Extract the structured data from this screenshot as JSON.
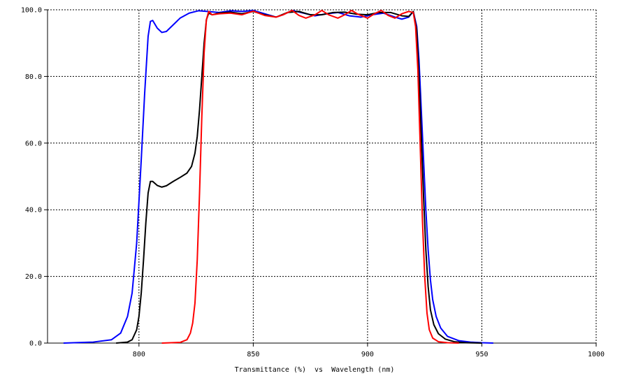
{
  "chart_data": {
    "type": "line",
    "title": "",
    "xlabel": "Transmittance (%)  vs  Wavelength (nm)",
    "ylabel": "",
    "xlim": [
      760,
      1000
    ],
    "ylim": [
      0,
      100
    ],
    "grid": true,
    "x_ticks": [
      800,
      850,
      900,
      950,
      1000
    ],
    "x_tick_labels": [
      "800",
      "850",
      "900",
      "950",
      "1000"
    ],
    "y_ticks": [
      0,
      20,
      40,
      60,
      80,
      100
    ],
    "y_tick_labels": [
      "0.0",
      "20.0",
      "40.0",
      "60.0",
      "80.0",
      "100.0"
    ],
    "series": [
      {
        "color": "#0000ff",
        "points": [
          [
            767,
            0
          ],
          [
            780,
            0.3
          ],
          [
            788,
            1
          ],
          [
            792,
            3
          ],
          [
            795,
            8
          ],
          [
            797,
            15
          ],
          [
            799,
            30
          ],
          [
            801,
            55
          ],
          [
            802.5,
            75
          ],
          [
            804,
            92
          ],
          [
            805,
            96.5
          ],
          [
            806,
            96.8
          ],
          [
            808,
            94.5
          ],
          [
            810,
            93.2
          ],
          [
            812,
            93.5
          ],
          [
            815,
            95.5
          ],
          [
            818,
            97.5
          ],
          [
            822,
            99
          ],
          [
            826,
            99.7
          ],
          [
            830,
            99.5
          ],
          [
            835,
            99.2
          ],
          [
            840,
            99.7
          ],
          [
            845,
            99.5
          ],
          [
            850,
            99.8
          ],
          [
            855,
            98.8
          ],
          [
            860,
            97.8
          ],
          [
            863,
            98.5
          ],
          [
            867,
            99.8
          ],
          [
            872,
            99
          ],
          [
            877,
            98.2
          ],
          [
            882,
            98.8
          ],
          [
            887,
            99.2
          ],
          [
            892,
            98.2
          ],
          [
            897,
            97.8
          ],
          [
            902,
            98.5
          ],
          [
            907,
            99
          ],
          [
            912,
            97.8
          ],
          [
            915,
            97.2
          ],
          [
            918,
            97.8
          ],
          [
            920,
            99.5
          ],
          [
            921.5,
            95
          ],
          [
            922.5,
            85
          ],
          [
            923.5,
            70
          ],
          [
            924.5,
            55
          ],
          [
            925.5,
            40
          ],
          [
            926.5,
            28
          ],
          [
            927.5,
            19
          ],
          [
            928.5,
            13
          ],
          [
            930,
            8
          ],
          [
            932,
            4.5
          ],
          [
            935,
            2
          ],
          [
            940,
            0.7
          ],
          [
            945,
            0.3
          ],
          [
            950,
            0.1
          ],
          [
            955,
            0
          ]
        ]
      },
      {
        "color": "#000000",
        "points": [
          [
            790,
            0
          ],
          [
            795,
            0.3
          ],
          [
            797,
            1
          ],
          [
            799,
            4
          ],
          [
            800,
            8
          ],
          [
            801,
            15
          ],
          [
            802,
            25
          ],
          [
            803,
            36
          ],
          [
            804,
            45
          ],
          [
            805,
            48.5
          ],
          [
            806,
            48.5
          ],
          [
            808,
            47.3
          ],
          [
            810,
            46.8
          ],
          [
            812,
            47.2
          ],
          [
            815,
            48.5
          ],
          [
            818,
            49.7
          ],
          [
            821,
            51
          ],
          [
            823,
            53
          ],
          [
            824.5,
            57
          ],
          [
            825.5,
            62
          ],
          [
            826.5,
            70
          ],
          [
            827.5,
            80
          ],
          [
            828.5,
            90
          ],
          [
            829.5,
            97
          ],
          [
            830.5,
            99
          ],
          [
            832,
            98.5
          ],
          [
            835,
            99
          ],
          [
            840,
            99.3
          ],
          [
            845,
            98.8
          ],
          [
            850,
            99.5
          ],
          [
            855,
            98.5
          ],
          [
            860,
            97.8
          ],
          [
            865,
            99.2
          ],
          [
            870,
            99.5
          ],
          [
            875,
            98.5
          ],
          [
            880,
            98.5
          ],
          [
            885,
            99.2
          ],
          [
            890,
            99.3
          ],
          [
            895,
            98.7
          ],
          [
            900,
            98.5
          ],
          [
            905,
            99.2
          ],
          [
            910,
            99.2
          ],
          [
            915,
            98.2
          ],
          [
            918,
            98
          ],
          [
            920,
            99.5
          ],
          [
            921.5,
            94
          ],
          [
            922.5,
            80
          ],
          [
            923.5,
            62
          ],
          [
            924.5,
            44
          ],
          [
            925.5,
            28
          ],
          [
            926.5,
            17
          ],
          [
            927.5,
            10
          ],
          [
            929,
            5.5
          ],
          [
            931,
            2.8
          ],
          [
            934,
            1.2
          ],
          [
            938,
            0.4
          ],
          [
            943,
            0.1
          ],
          [
            950,
            0
          ]
        ]
      },
      {
        "color": "#ff0000",
        "points": [
          [
            810,
            0
          ],
          [
            818,
            0.2
          ],
          [
            821,
            1
          ],
          [
            822.5,
            3
          ],
          [
            823.5,
            6
          ],
          [
            824.5,
            12
          ],
          [
            825.5,
            25
          ],
          [
            826.5,
            45
          ],
          [
            827.5,
            68
          ],
          [
            828.5,
            87
          ],
          [
            829.5,
            97
          ],
          [
            830.5,
            99.5
          ],
          [
            832,
            98.5
          ],
          [
            835,
            98.8
          ],
          [
            840,
            99
          ],
          [
            845,
            98.5
          ],
          [
            850,
            99.6
          ],
          [
            855,
            98.3
          ],
          [
            860,
            97.8
          ],
          [
            863,
            98.5
          ],
          [
            867,
            99.8
          ],
          [
            870,
            98.3
          ],
          [
            873,
            97.5
          ],
          [
            877,
            98.5
          ],
          [
            880,
            99.8
          ],
          [
            883,
            98.5
          ],
          [
            887,
            97.5
          ],
          [
            890,
            98.5
          ],
          [
            893,
            99.8
          ],
          [
            896,
            98.6
          ],
          [
            900,
            97.5
          ],
          [
            903,
            98.8
          ],
          [
            906,
            99.8
          ],
          [
            909,
            98.3
          ],
          [
            912,
            97.5
          ],
          [
            915,
            98.8
          ],
          [
            918,
            99.5
          ],
          [
            920,
            99.2
          ],
          [
            921,
            95
          ],
          [
            922,
            82
          ],
          [
            923,
            60
          ],
          [
            924,
            37
          ],
          [
            925,
            20
          ],
          [
            926,
            9
          ],
          [
            927,
            4
          ],
          [
            928.5,
            1.5
          ],
          [
            931,
            0.4
          ],
          [
            935,
            0.1
          ],
          [
            940,
            0
          ]
        ]
      }
    ]
  }
}
